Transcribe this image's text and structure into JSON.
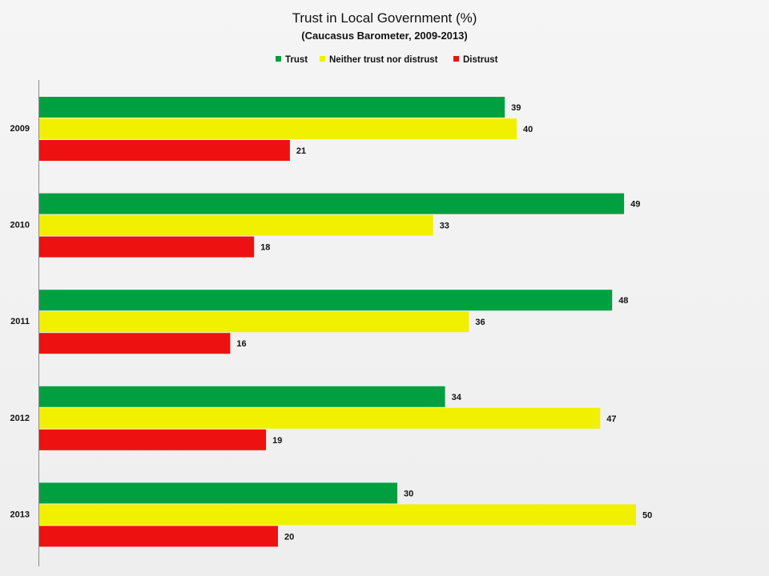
{
  "chart_data": {
    "type": "bar",
    "orientation": "horizontal",
    "title": "Trust in Local Government (%)",
    "subtitle": "(Caucasus Barometer, 2009-2013)",
    "categories": [
      "2009",
      "2010",
      "2011",
      "2012",
      "2013"
    ],
    "series": [
      {
        "name": "Trust",
        "color": "#00a040",
        "values": [
          39,
          49,
          48,
          34,
          30
        ]
      },
      {
        "name": "Neither trust nor distrust",
        "color": "#f0f000",
        "values": [
          40,
          33,
          36,
          47,
          50
        ]
      },
      {
        "name": "Distrust",
        "color": "#ee1111",
        "values": [
          21,
          18,
          16,
          19,
          20
        ]
      }
    ],
    "xlim": [
      0,
      60
    ],
    "legend_position": "top",
    "grid": false
  }
}
